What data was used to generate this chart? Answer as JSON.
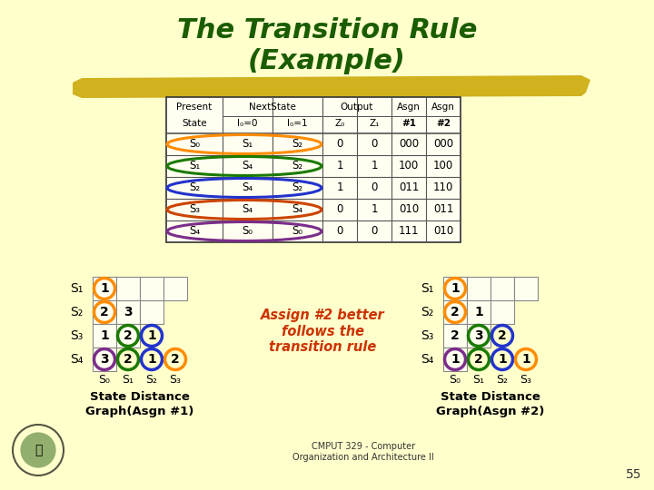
{
  "bg_color": "#FFFFCC",
  "title_line1": "The Transition Rule",
  "title_line2": "(Example)",
  "title_color": "#1a5c00",
  "highlight_color": "#C8A800",
  "row_oval_colors": [
    "#FF8C00",
    "#1a7a00",
    "#2233CC",
    "#CC4400",
    "#7B2D8B"
  ],
  "assign_text": "Assign #2 better\nfollows the\ntransition rule",
  "assign_color": "#CC3300",
  "asgn1_circles": [
    {
      "row": 0,
      "col": 0,
      "val": "1",
      "color": "#FF8C00"
    },
    {
      "row": 1,
      "col": 0,
      "val": "2",
      "color": "#FF8C00"
    },
    {
      "row": 1,
      "col": 1,
      "val": "3",
      "color": "none"
    },
    {
      "row": 2,
      "col": 0,
      "val": "1",
      "color": "none"
    },
    {
      "row": 2,
      "col": 1,
      "val": "2",
      "color": "#1a7a00"
    },
    {
      "row": 2,
      "col": 2,
      "val": "1",
      "color": "#2233CC"
    },
    {
      "row": 3,
      "col": 0,
      "val": "3",
      "color": "#7B2D8B"
    },
    {
      "row": 3,
      "col": 1,
      "val": "2",
      "color": "#1a7a00"
    },
    {
      "row": 3,
      "col": 2,
      "val": "1",
      "color": "#2233CC"
    },
    {
      "row": 3,
      "col": 3,
      "val": "2",
      "color": "#FF8C00"
    }
  ],
  "asgn2_circles": [
    {
      "row": 0,
      "col": 0,
      "val": "1",
      "color": "#FF8C00"
    },
    {
      "row": 1,
      "col": 0,
      "val": "2",
      "color": "#FF8C00"
    },
    {
      "row": 1,
      "col": 1,
      "val": "1",
      "color": "none"
    },
    {
      "row": 2,
      "col": 0,
      "val": "2",
      "color": "none"
    },
    {
      "row": 2,
      "col": 1,
      "val": "3",
      "color": "#1a7a00"
    },
    {
      "row": 2,
      "col": 2,
      "val": "2",
      "color": "#2233CC"
    },
    {
      "row": 3,
      "col": 0,
      "val": "1",
      "color": "#7B2D8B"
    },
    {
      "row": 3,
      "col": 1,
      "val": "2",
      "color": "#1a7a00"
    },
    {
      "row": 3,
      "col": 2,
      "val": "1",
      "color": "#2233CC"
    },
    {
      "row": 3,
      "col": 3,
      "val": "1",
      "color": "#FF8C00"
    }
  ],
  "row_labels": [
    "S₁",
    "S₂",
    "S₃",
    "S₄"
  ],
  "col_labels": [
    "S₀",
    "S₁",
    "S₂",
    "S₃"
  ],
  "footer_text": "CMPUT 329 - Computer\nOrganization and Architecture II",
  "page_num": "55"
}
